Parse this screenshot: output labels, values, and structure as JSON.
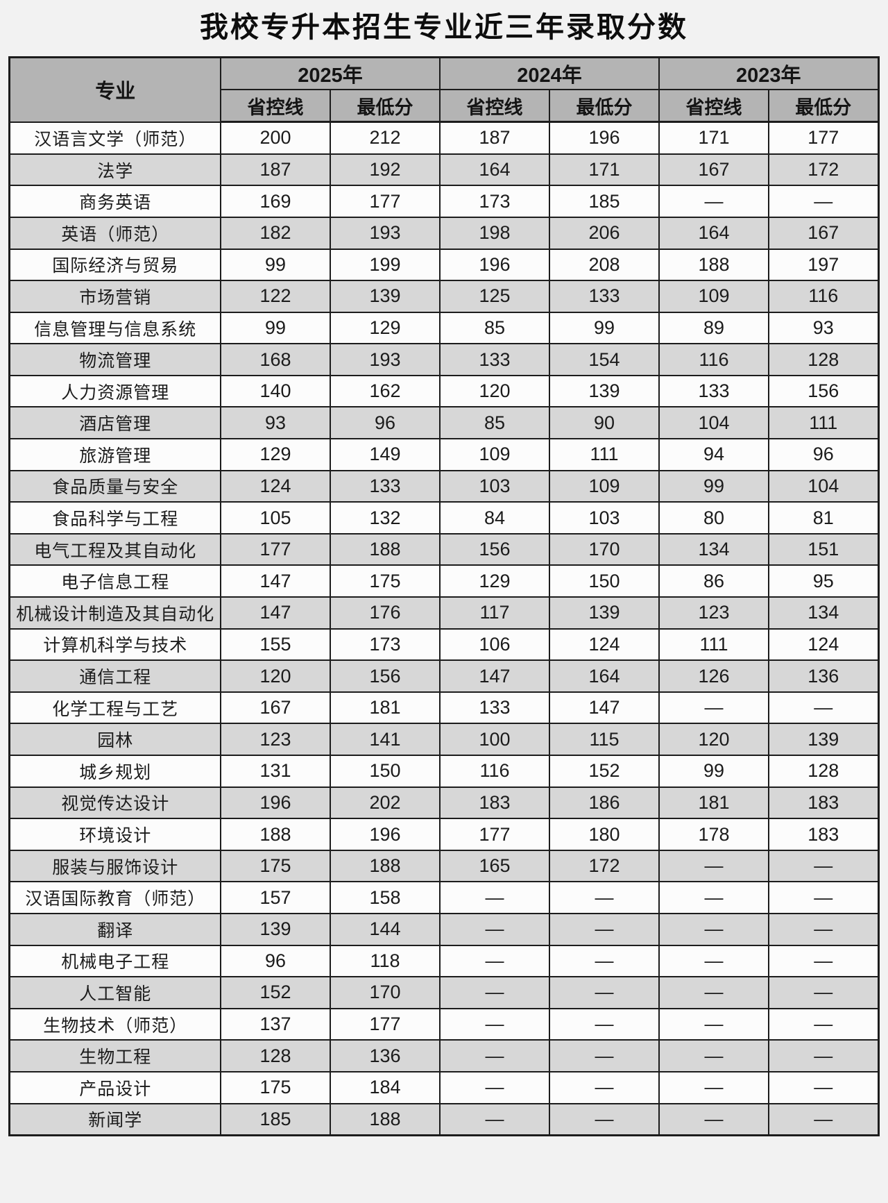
{
  "page": {
    "title": "我校专升本招生专业近三年录取分数"
  },
  "colors": {
    "page_bg": "#f2f2f2",
    "header_bg": "#b4b4b4",
    "stripe_row_bg": "#d7d7d7",
    "plain_row_bg": "#fcfcfc",
    "border": "#1c1c1c",
    "text": "#161616"
  },
  "chart_data": {
    "type": "table",
    "title": "我校专升本招生专业近三年录取分数",
    "row_header": "专业",
    "column_groups": [
      "2025年",
      "2024年",
      "2023年"
    ],
    "sub_columns": [
      "省控线",
      "最低分"
    ],
    "empty_marker": "—",
    "rows": [
      {
        "major": "汉语言文学（师范）",
        "values": [
          "200",
          "212",
          "187",
          "196",
          "171",
          "177"
        ]
      },
      {
        "major": "法学",
        "values": [
          "187",
          "192",
          "164",
          "171",
          "167",
          "172"
        ]
      },
      {
        "major": "商务英语",
        "values": [
          "169",
          "177",
          "173",
          "185",
          "—",
          "—"
        ]
      },
      {
        "major": "英语（师范）",
        "values": [
          "182",
          "193",
          "198",
          "206",
          "164",
          "167"
        ]
      },
      {
        "major": "国际经济与贸易",
        "values": [
          "99",
          "199",
          "196",
          "208",
          "188",
          "197"
        ]
      },
      {
        "major": "市场营销",
        "values": [
          "122",
          "139",
          "125",
          "133",
          "109",
          "116"
        ]
      },
      {
        "major": "信息管理与信息系统",
        "values": [
          "99",
          "129",
          "85",
          "99",
          "89",
          "93"
        ]
      },
      {
        "major": "物流管理",
        "values": [
          "168",
          "193",
          "133",
          "154",
          "116",
          "128"
        ]
      },
      {
        "major": "人力资源管理",
        "values": [
          "140",
          "162",
          "120",
          "139",
          "133",
          "156"
        ]
      },
      {
        "major": "酒店管理",
        "values": [
          "93",
          "96",
          "85",
          "90",
          "104",
          "111"
        ]
      },
      {
        "major": "旅游管理",
        "values": [
          "129",
          "149",
          "109",
          "111",
          "94",
          "96"
        ]
      },
      {
        "major": "食品质量与安全",
        "values": [
          "124",
          "133",
          "103",
          "109",
          "99",
          "104"
        ]
      },
      {
        "major": "食品科学与工程",
        "values": [
          "105",
          "132",
          "84",
          "103",
          "80",
          "81"
        ]
      },
      {
        "major": "电气工程及其自动化",
        "values": [
          "177",
          "188",
          "156",
          "170",
          "134",
          "151"
        ]
      },
      {
        "major": "电子信息工程",
        "values": [
          "147",
          "175",
          "129",
          "150",
          "86",
          "95"
        ]
      },
      {
        "major": "机械设计制造及其自动化",
        "values": [
          "147",
          "176",
          "117",
          "139",
          "123",
          "134"
        ]
      },
      {
        "major": "计算机科学与技术",
        "values": [
          "155",
          "173",
          "106",
          "124",
          "111",
          "124"
        ]
      },
      {
        "major": "通信工程",
        "values": [
          "120",
          "156",
          "147",
          "164",
          "126",
          "136"
        ]
      },
      {
        "major": "化学工程与工艺",
        "values": [
          "167",
          "181",
          "133",
          "147",
          "—",
          "—"
        ]
      },
      {
        "major": "园林",
        "values": [
          "123",
          "141",
          "100",
          "115",
          "120",
          "139"
        ]
      },
      {
        "major": "城乡规划",
        "values": [
          "131",
          "150",
          "116",
          "152",
          "99",
          "128"
        ]
      },
      {
        "major": "视觉传达设计",
        "values": [
          "196",
          "202",
          "183",
          "186",
          "181",
          "183"
        ]
      },
      {
        "major": "环境设计",
        "values": [
          "188",
          "196",
          "177",
          "180",
          "178",
          "183"
        ]
      },
      {
        "major": "服装与服饰设计",
        "values": [
          "175",
          "188",
          "165",
          "172",
          "—",
          "—"
        ]
      },
      {
        "major": "汉语国际教育（师范）",
        "values": [
          "157",
          "158",
          "—",
          "—",
          "—",
          "—"
        ]
      },
      {
        "major": "翻译",
        "values": [
          "139",
          "144",
          "—",
          "—",
          "—",
          "—"
        ]
      },
      {
        "major": "机械电子工程",
        "values": [
          "96",
          "118",
          "—",
          "—",
          "—",
          "—"
        ]
      },
      {
        "major": "人工智能",
        "values": [
          "152",
          "170",
          "—",
          "—",
          "—",
          "—"
        ]
      },
      {
        "major": "生物技术（师范）",
        "values": [
          "137",
          "177",
          "—",
          "—",
          "—",
          "—"
        ]
      },
      {
        "major": "生物工程",
        "values": [
          "128",
          "136",
          "—",
          "—",
          "—",
          "—"
        ]
      },
      {
        "major": "产品设计",
        "values": [
          "175",
          "184",
          "—",
          "—",
          "—",
          "—"
        ]
      },
      {
        "major": "新闻学",
        "values": [
          "185",
          "188",
          "—",
          "—",
          "—",
          "—"
        ]
      }
    ]
  }
}
